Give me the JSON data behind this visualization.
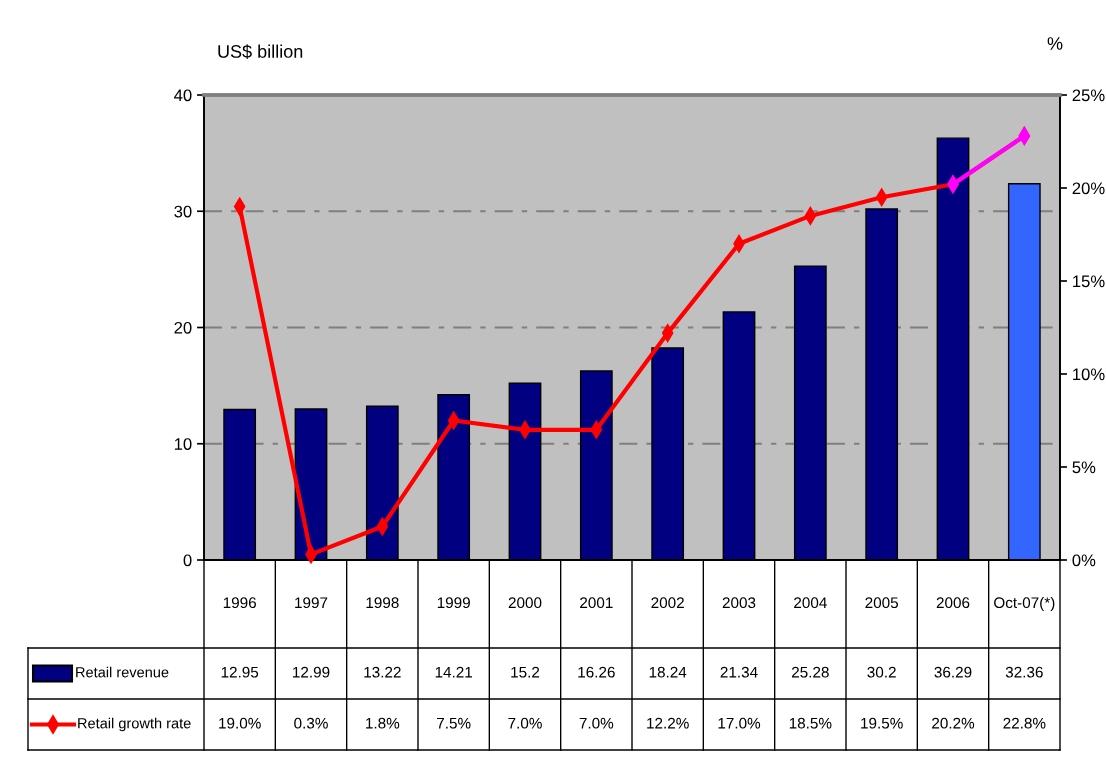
{
  "chart_data": {
    "type": "bar",
    "categories": [
      "1996",
      "1997",
      "1998",
      "1999",
      "2000",
      "2001",
      "2002",
      "2003",
      "2004",
      "2005",
      "2006",
      "Oct-07(*)"
    ],
    "series": [
      {
        "name": "Retail revenue",
        "color": "#000080",
        "colors": [
          "#000080",
          "#000080",
          "#000080",
          "#000080",
          "#000080",
          "#000080",
          "#000080",
          "#000080",
          "#000080",
          "#000080",
          "#000080",
          "#3366ff"
        ],
        "values": [
          12.95,
          12.99,
          13.22,
          14.21,
          15.2,
          16.26,
          18.24,
          21.34,
          25.28,
          30.2,
          36.29,
          32.36
        ],
        "value_labels": [
          "12.95",
          "12.99",
          "13.22",
          "14.21",
          "15.2",
          "16.26",
          "18.24",
          "21.34",
          "25.28",
          "30.2",
          "36.29",
          "32.36"
        ]
      },
      {
        "name": "Retail growth rate",
        "type": "line",
        "axis": "y2",
        "color": "#ff0000",
        "values": [
          19.0,
          0.3,
          1.8,
          7.5,
          7.0,
          7.0,
          12.2,
          17.0,
          18.5,
          19.5,
          20.2,
          22.8
        ],
        "value_labels": [
          "19.0%",
          "0.3%",
          "1.8%",
          "7.5%",
          "7.0%",
          "7.0%",
          "12.2%",
          "17.0%",
          "18.5%",
          "19.5%",
          "20.2%",
          "22.8%"
        ]
      },
      {
        "type": "line",
        "axis": "y2",
        "color": "#ff00ff",
        "values": [
          null,
          null,
          null,
          null,
          null,
          null,
          null,
          null,
          null,
          null,
          20.2,
          22.8
        ]
      }
    ],
    "ylabel": "US$ billion",
    "y2label": "%",
    "ylim": [
      0,
      40
    ],
    "yticks": [
      0,
      10,
      20,
      30,
      40
    ],
    "y2lim": [
      0,
      25
    ],
    "y2ticks": [
      {
        "value": 0,
        "label": "0%"
      },
      {
        "value": 5,
        "label": "5%"
      },
      {
        "value": 10,
        "label": "10%"
      },
      {
        "value": 15,
        "label": "15%"
      },
      {
        "value": 20,
        "label": "20%"
      },
      {
        "value": 25,
        "label": "25%"
      }
    ],
    "grid": "y",
    "legend": "bottom",
    "marker": "diamond",
    "line_style": "solid"
  }
}
